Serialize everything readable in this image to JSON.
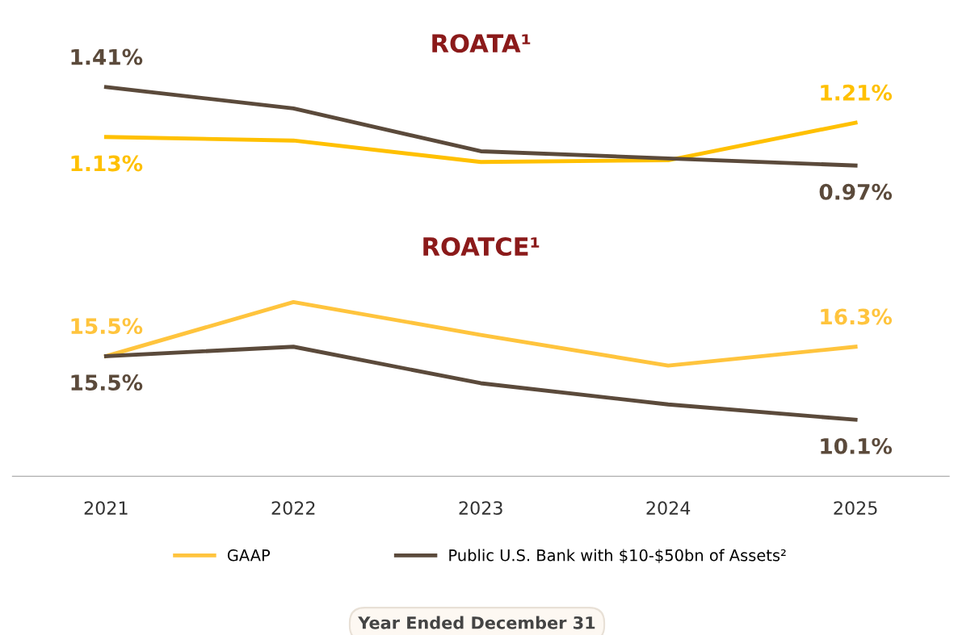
{
  "chart_data": [
    {
      "type": "line",
      "title": "ROATA¹",
      "categories": [
        "2021",
        "2022",
        "2023",
        "2024",
        "2025"
      ],
      "tick_labels": false,
      "legend": false,
      "grid": false,
      "marker": "none",
      "line_style": "solid",
      "series": [
        {
          "color": "#ffc000",
          "values": [
            1.13,
            1.11,
            0.99,
            1.0,
            1.21
          ],
          "value_labels": [
            "1.13%",
            null,
            null,
            null,
            "1.21%"
          ]
        },
        {
          "color": "#5b4a3b",
          "values": [
            1.41,
            1.29,
            1.05,
            1.01,
            0.97
          ],
          "value_labels": [
            "1.41%",
            null,
            null,
            null,
            "0.97%"
          ]
        }
      ]
    },
    {
      "type": "line",
      "title": "ROATCE¹",
      "categories": [
        "2021",
        "2022",
        "2023",
        "2024",
        "2025"
      ],
      "tick_labels": "x",
      "legend": "bottom",
      "grid": false,
      "marker": "none",
      "line_style": "solid",
      "annotations": [
        "Year Ended December 31"
      ],
      "series": [
        {
          "name": "GAAP",
          "color": "#ffc43d",
          "values": [
            15.5,
            20.1,
            17.3,
            14.7,
            16.3
          ],
          "value_labels": [
            "15.5%",
            null,
            null,
            null,
            "16.3%"
          ]
        },
        {
          "name": "Public U.S. Bank with $10-$50bn of Assets²",
          "color": "#5b4a3b",
          "values": [
            15.5,
            16.3,
            13.2,
            11.4,
            10.1
          ],
          "value_labels": [
            "15.5%",
            null,
            null,
            null,
            "10.1%"
          ]
        }
      ]
    }
  ]
}
